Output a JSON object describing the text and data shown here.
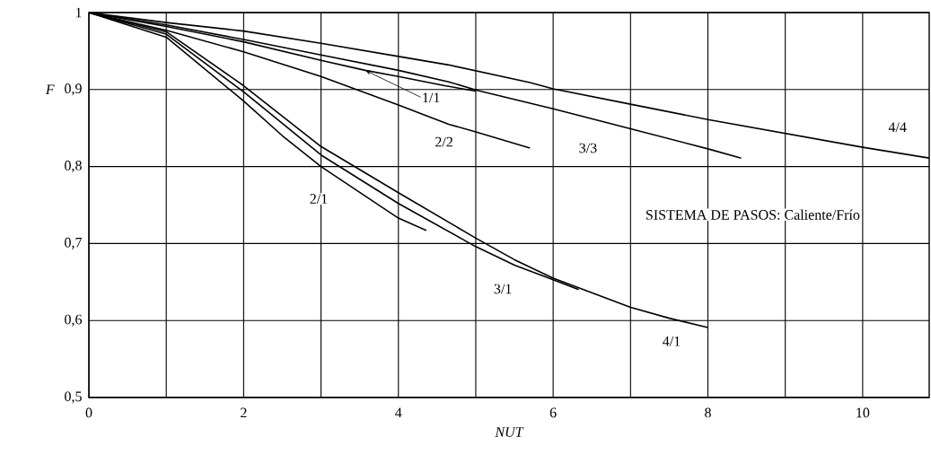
{
  "chart_data": {
    "type": "line",
    "xlabel": "NUT",
    "ylabel": "F",
    "xlim": [
      0,
      10.86
    ],
    "ylim": [
      0.5,
      1
    ],
    "xticks": [
      0,
      {
        "value": 1,
        "label": null
      },
      2,
      {
        "value": 3,
        "label": null
      },
      4,
      {
        "value": 5,
        "label": null
      },
      6,
      {
        "value": 7,
        "label": null
      },
      8,
      {
        "value": 9,
        "label": null
      },
      10
    ],
    "yticks": [
      {
        "value": 0.5,
        "label": "0,5"
      },
      {
        "value": 0.6,
        "label": "0,6"
      },
      {
        "value": 0.7,
        "label": "0,7"
      },
      {
        "value": 0.8,
        "label": "0,8"
      },
      {
        "value": 0.9,
        "label": "0,9"
      },
      1
    ],
    "grid": true,
    "marker": "none",
    "line_style": "solid",
    "series": [
      {
        "color": "#000000",
        "x": [
          0,
          1,
          2,
          3,
          3.57,
          4,
          4.6,
          5.0
        ],
        "values": [
          1,
          0.982,
          0.962,
          0.938,
          0.925,
          0.917,
          0.905,
          0.898
        ]
      },
      {
        "color": "#000000",
        "x": [
          0,
          1,
          2,
          3,
          4,
          4.65,
          5,
          5.7
        ],
        "values": [
          1,
          0.977,
          0.949,
          0.917,
          0.88,
          0.855,
          0.845,
          0.824
        ]
      },
      {
        "color": "#000000",
        "x": [
          0,
          1,
          2,
          3,
          4,
          4.65,
          5.02,
          6,
          7,
          8,
          8.43
        ],
        "values": [
          1,
          0.984,
          0.965,
          0.945,
          0.925,
          0.91,
          0.899,
          0.875,
          0.849,
          0.823,
          0.811
        ]
      },
      {
        "color": "#000000",
        "x": [
          0,
          1,
          2,
          3,
          4,
          4.65,
          5.7,
          6,
          7,
          8,
          9,
          10,
          10.86
        ],
        "values": [
          1,
          0.987,
          0.976,
          0.96,
          0.943,
          0.932,
          0.909,
          0.901,
          0.881,
          0.861,
          0.843,
          0.825,
          0.811
        ]
      },
      {
        "color": "#000000",
        "x": [
          0,
          1,
          2,
          2.5,
          3,
          4,
          4.36
        ],
        "values": [
          1,
          0.968,
          0.885,
          0.84,
          0.8,
          0.733,
          0.717
        ]
      },
      {
        "color": "#000000",
        "x": [
          0,
          1,
          2,
          3,
          4,
          5,
          5.5,
          6,
          6.33
        ],
        "values": [
          1,
          0.972,
          0.897,
          0.815,
          0.752,
          0.696,
          0.672,
          0.653,
          0.64
        ]
      },
      {
        "color": "#000000",
        "x": [
          0,
          1,
          2,
          3,
          4,
          5,
          5.5,
          6,
          7,
          7.5,
          8
        ],
        "values": [
          1,
          0.975,
          0.905,
          0.826,
          0.766,
          0.707,
          0.679,
          0.655,
          0.617,
          0.603,
          0.591
        ]
      }
    ],
    "annotations": [
      {
        "text": "1/1",
        "x": 3.57,
        "y": 0.925
      },
      {
        "text": "2/2",
        "x": 4.59,
        "y": 0.832
      },
      {
        "text": "3/3",
        "x": 6.45,
        "y": 0.824
      },
      {
        "text": "4/4",
        "x": 10.45,
        "y": 0.851
      },
      {
        "text": "2/1",
        "x": 2.97,
        "y": 0.758
      },
      {
        "text": "3/1",
        "x": 5.35,
        "y": 0.641
      },
      {
        "text": "4/1",
        "x": 7.53,
        "y": 0.573
      },
      "SISTEMA DE PASOS: Caliente/Frío"
    ]
  }
}
